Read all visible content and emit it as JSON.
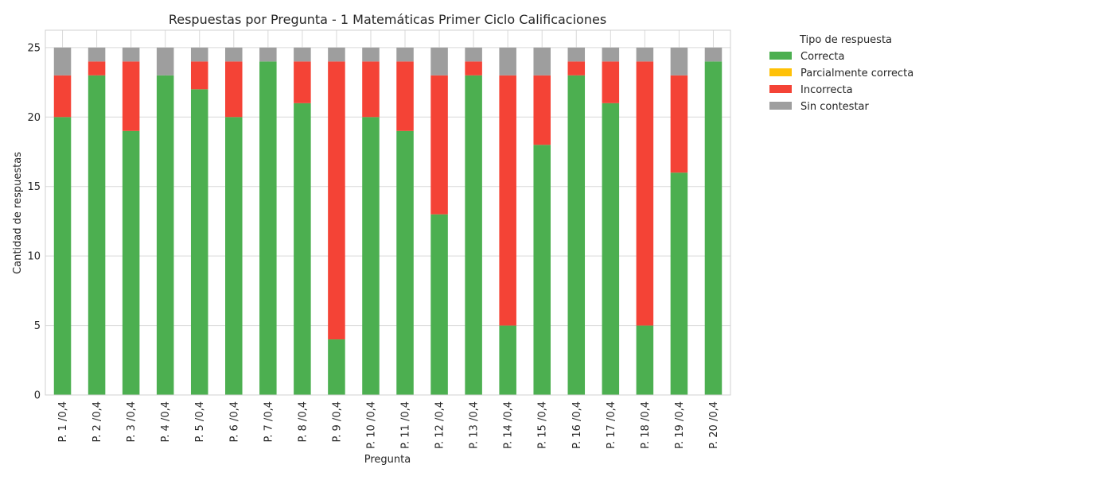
{
  "chart_data": {
    "type": "bar",
    "stacked": true,
    "title": "Respuestas por Pregunta - 1 Matemáticas  Primer Ciclo Calificaciones",
    "xlabel": "Pregunta",
    "ylabel": "Cantidad de respuestas",
    "ylim": [
      0,
      26.25
    ],
    "yticks": [
      0,
      5,
      10,
      15,
      20,
      25
    ],
    "grid": true,
    "legend": {
      "title": "Tipo de respuesta",
      "placement": "outside-top-right"
    },
    "categories": [
      "P. 1 /0,4",
      "P. 2 /0,4",
      "P. 3 /0,4",
      "P. 4 /0,4",
      "P. 5 /0,4",
      "P. 6 /0,4",
      "P. 7 /0,4",
      "P. 8 /0,4",
      "P. 9 /0,4",
      "P. 10 /0,4",
      "P. 11 /0,4",
      "P. 12 /0,4",
      "P. 13 /0,4",
      "P. 14 /0,4",
      "P. 15 /0,4",
      "P. 16 /0,4",
      "P. 17 /0,4",
      "P. 18 /0,4",
      "P. 19 /0,4",
      "P. 20 /0,4"
    ],
    "series": [
      {
        "name": "Correcta",
        "color": "#4caf50",
        "values": [
          20,
          23,
          19,
          23,
          22,
          20,
          24,
          21,
          4,
          20,
          19,
          13,
          23,
          5,
          18,
          23,
          21,
          5,
          16,
          24
        ]
      },
      {
        "name": "Parcialmente correcta",
        "color": "#ffc107",
        "values": [
          0,
          0,
          0,
          0,
          0,
          0,
          0,
          0,
          0,
          0,
          0,
          0,
          0,
          0,
          0,
          0,
          0,
          0,
          0,
          0
        ]
      },
      {
        "name": "Incorrecta",
        "color": "#f44336",
        "values": [
          3,
          1,
          5,
          0,
          2,
          4,
          0,
          3,
          20,
          4,
          5,
          10,
          1,
          18,
          5,
          1,
          3,
          19,
          7,
          0
        ]
      },
      {
        "name": "Sin contestar",
        "color": "#9e9e9e",
        "values": [
          2,
          1,
          1,
          2,
          1,
          1,
          1,
          1,
          1,
          1,
          1,
          2,
          1,
          2,
          2,
          1,
          1,
          1,
          2,
          1
        ]
      }
    ]
  }
}
